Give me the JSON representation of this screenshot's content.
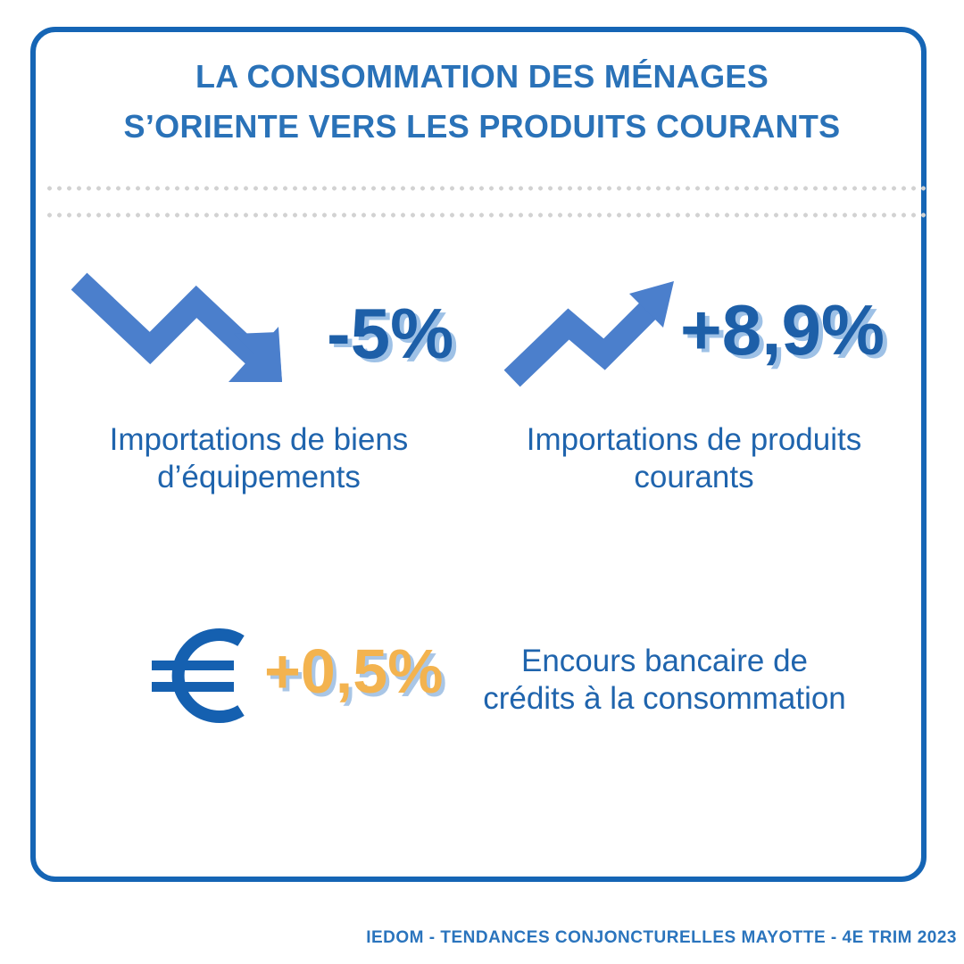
{
  "title": {
    "line1": "LA CONSOMMATION DES MÉNAGES",
    "line2": "S’ORIENTE VERS LES PRODUITS COURANTS"
  },
  "stats": [
    {
      "value": "-5%",
      "label_line1": "Importations de biens",
      "label_line2": "d’équipements",
      "trend": "down",
      "icon": "down-trend-arrow-icon"
    },
    {
      "value": "+8,9%",
      "label_line1": "Importations de produits",
      "label_line2": "courants",
      "trend": "up",
      "icon": "up-trend-arrow-icon"
    },
    {
      "value": "+0,5%",
      "label_line1": "Encours bancaire de",
      "label_line2": "crédits à la consommation",
      "icon": "euro-icon"
    }
  ],
  "footer": "IEDOM - TENDANCES CONJONCTURELLES MAYOTTE - 4E TRIM 2023",
  "colors": {
    "border": "#1565b5",
    "title": "#2a72b8",
    "stat_value": "#1d5fa8",
    "stat_shadow": "#9ec1e6",
    "stat_highlight": "#f3b34f",
    "arrow": "#4b7fcc",
    "euro": "#1560b0"
  }
}
